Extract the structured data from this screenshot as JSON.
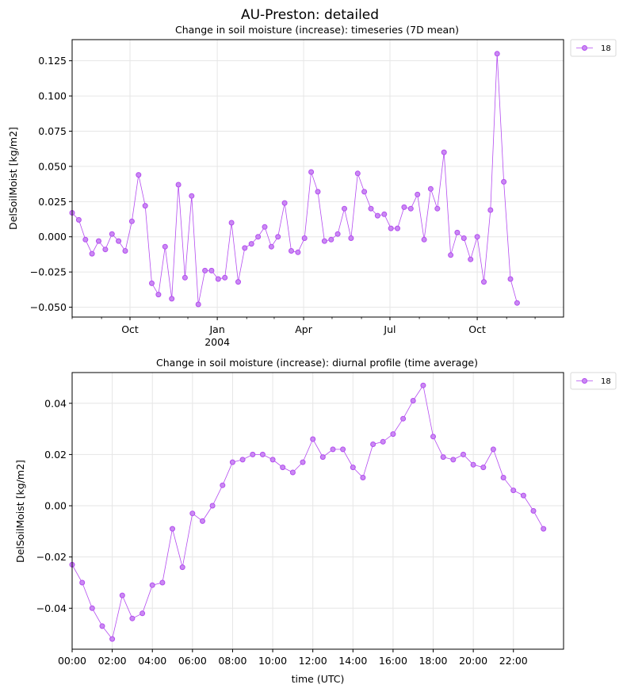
{
  "figure": {
    "title": "AU-Preston: detailed",
    "series_color": "#b44cf0"
  },
  "chart_data": [
    {
      "type": "line",
      "title": "Change in soil moisture (increase): timeseries (7D mean)",
      "xlabel": "",
      "ylabel": "DelSoilMoist [kg/m2]",
      "grid": true,
      "legend_position": "outside-top-right",
      "x_range": [
        "2003-08-01",
        "2004-12-31"
      ],
      "ylim": [
        -0.057,
        0.14
      ],
      "x_ticks": [
        {
          "date": "2003-10-01",
          "label": "Oct",
          "sub": ""
        },
        {
          "date": "2004-01-01",
          "label": "Jan",
          "sub": "2004"
        },
        {
          "date": "2004-04-01",
          "label": "Apr",
          "sub": ""
        },
        {
          "date": "2004-07-01",
          "label": "Jul",
          "sub": ""
        },
        {
          "date": "2004-10-01",
          "label": "Oct",
          "sub": ""
        }
      ],
      "x_minor_ticks": [
        "2003-08-01",
        "2003-09-01",
        "2003-11-01",
        "2003-12-01",
        "2004-02-01",
        "2004-03-01",
        "2004-05-01",
        "2004-06-01",
        "2004-08-01",
        "2004-09-01",
        "2004-11-01",
        "2004-12-01"
      ],
      "y_ticks": [
        -0.05,
        -0.025,
        0.0,
        0.025,
        0.05,
        0.075,
        0.1,
        0.125
      ],
      "y_tick_labels": [
        "−0.050",
        "−0.025",
        "0.000",
        "0.025",
        "0.050",
        "0.075",
        "0.100",
        "0.125"
      ],
      "series": [
        {
          "name": "18",
          "x_start": "2003-08-01",
          "x_step_days": 7,
          "values": [
            0.017,
            0.012,
            -0.002,
            -0.012,
            -0.003,
            -0.009,
            0.002,
            -0.003,
            -0.01,
            0.011,
            0.044,
            0.022,
            -0.033,
            -0.041,
            -0.007,
            -0.044,
            0.037,
            -0.029,
            0.029,
            -0.048,
            -0.024,
            -0.024,
            -0.03,
            -0.029,
            0.01,
            -0.032,
            -0.008,
            -0.005,
            0.0,
            0.007,
            -0.007,
            0.0,
            0.024,
            -0.01,
            -0.011,
            -0.001,
            0.046,
            0.032,
            -0.003,
            -0.002,
            0.002,
            0.02,
            -0.001,
            0.045,
            0.032,
            0.02,
            0.015,
            0.016,
            0.006,
            0.006,
            0.021,
            0.02,
            0.03,
            -0.002,
            0.034,
            0.02,
            0.06,
            -0.013,
            0.003,
            -0.001,
            -0.016,
            0.0,
            -0.032,
            0.019,
            0.13,
            0.039,
            -0.03,
            -0.047
          ]
        }
      ]
    },
    {
      "type": "line",
      "title": "Change in soil moisture (increase): diurnal profile (time average)",
      "xlabel": "time (UTC)",
      "ylabel": "DelSoilMoist [kg/m2]",
      "grid": true,
      "legend_position": "outside-top-right",
      "xlim": [
        0,
        24.5
      ],
      "ylim": [
        -0.056,
        0.052
      ],
      "x_ticks": [
        0,
        2,
        4,
        6,
        8,
        10,
        12,
        14,
        16,
        18,
        20,
        22
      ],
      "x_tick_labels": [
        "00:00",
        "02:00",
        "04:00",
        "06:00",
        "08:00",
        "10:00",
        "12:00",
        "14:00",
        "16:00",
        "18:00",
        "20:00",
        "22:00"
      ],
      "y_ticks": [
        -0.04,
        -0.02,
        0.0,
        0.02,
        0.04
      ],
      "y_tick_labels": [
        "−0.04",
        "−0.02",
        "0.00",
        "0.02",
        "0.04"
      ],
      "series": [
        {
          "name": "18",
          "x_step_hours": 0.5,
          "values": [
            -0.023,
            -0.03,
            -0.04,
            -0.047,
            -0.052,
            -0.035,
            -0.044,
            -0.042,
            -0.031,
            -0.03,
            -0.009,
            -0.024,
            -0.003,
            -0.006,
            0.0,
            0.008,
            0.017,
            0.018,
            0.02,
            0.02,
            0.018,
            0.015,
            0.013,
            0.017,
            0.026,
            0.019,
            0.022,
            0.022,
            0.015,
            0.011,
            0.024,
            0.025,
            0.028,
            0.034,
            0.041,
            0.047,
            0.027,
            0.019,
            0.018,
            0.02,
            0.016,
            0.015,
            0.022,
            0.011,
            0.006,
            0.004,
            -0.002,
            -0.009
          ]
        }
      ]
    }
  ]
}
